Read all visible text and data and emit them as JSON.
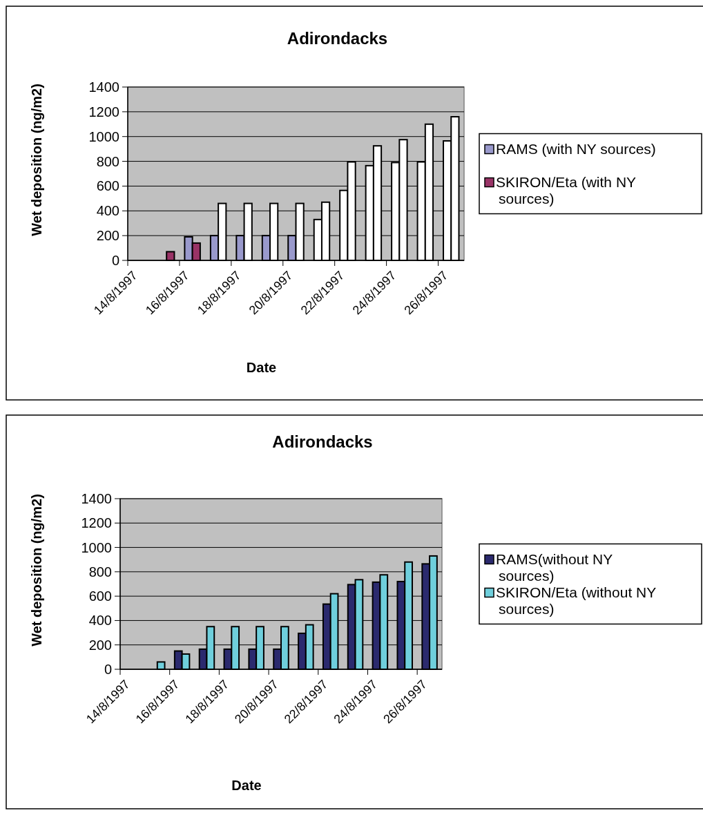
{
  "chart_data": [
    {
      "type": "bar",
      "title": "Adirondacks",
      "xlabel": "Date",
      "ylabel": "Wet deposition (ng/m2)",
      "categories": [
        "14/8/1997",
        null,
        "16/8/1997",
        null,
        "18/8/1997",
        null,
        "20/8/1997",
        null,
        "22/8/1997",
        null,
        "24/8/1997",
        null,
        "26/8/1997"
      ],
      "ylim": [
        0,
        1400
      ],
      "yticks": [
        0,
        200,
        400,
        600,
        800,
        1000,
        1200,
        1400
      ],
      "grid": "y",
      "legend": "right",
      "series": [
        {
          "name": "RAMS (with NY sources)",
          "color": "#9999cc",
          "colors": [
            "#9999cc",
            "#9999cc",
            "#9999cc",
            "#9999cc",
            "#9999cc",
            "#9999cc",
            "#9999cc",
            "#ffffff",
            "#ffffff",
            "#ffffff",
            "#ffffff",
            "#ffffff",
            "#ffffff"
          ],
          "values": [
            null,
            null,
            190,
            200,
            200,
            200,
            200,
            330,
            565,
            765,
            790,
            795,
            965
          ]
        },
        {
          "name": "SKIRON/Eta (with NY sources)",
          "color": "#993366",
          "colors": [
            "#993366",
            "#993366",
            "#993366",
            "#ffffff",
            "#ffffff",
            "#ffffff",
            "#ffffff",
            "#ffffff",
            "#ffffff",
            "#ffffff",
            "#ffffff",
            "#ffffff",
            "#ffffff"
          ],
          "values": [
            null,
            70,
            140,
            460,
            460,
            460,
            460,
            470,
            795,
            925,
            975,
            1100,
            1160
          ]
        }
      ]
    },
    {
      "type": "bar",
      "title": "Adirondacks",
      "xlabel": "Date",
      "ylabel": "Wet deposition (ng/m2)",
      "categories": [
        "14/8/1997",
        null,
        "16/8/1997",
        null,
        "18/8/1997",
        null,
        "20/8/1997",
        null,
        "22/8/1997",
        null,
        "24/8/1997",
        null,
        "26/8/1997"
      ],
      "ylim": [
        0,
        1400
      ],
      "yticks": [
        0,
        200,
        400,
        600,
        800,
        1000,
        1200,
        1400
      ],
      "grid": "y",
      "legend": "right",
      "series": [
        {
          "name": "RAMS(without NY sources)",
          "color": "#2b2a6e",
          "values": [
            null,
            null,
            150,
            165,
            165,
            165,
            165,
            295,
            535,
            695,
            715,
            720,
            865
          ]
        },
        {
          "name": "SKIRON/Eta (without NY sources)",
          "color": "#6fcfdc",
          "values": [
            null,
            60,
            125,
            350,
            350,
            350,
            350,
            365,
            620,
            735,
            775,
            880,
            930
          ]
        }
      ]
    }
  ]
}
